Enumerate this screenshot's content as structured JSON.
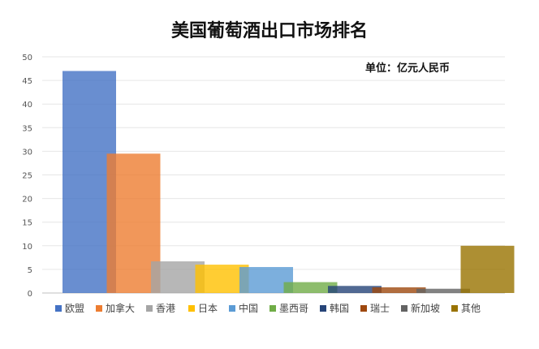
{
  "chart_data": {
    "type": "bar",
    "title": "美国葡萄酒出口市场排名",
    "unit_label": "单位：亿元人民币",
    "categories": [
      "欧盟",
      "加拿大",
      "香港",
      "日本",
      "中国",
      "墨西哥",
      "韩国",
      "瑞士",
      "新加坡",
      "其他"
    ],
    "values": [
      47,
      29.5,
      6.7,
      6,
      5.5,
      2.3,
      1.5,
      1.2,
      0.9,
      10
    ],
    "colors": [
      "#4472C4",
      "#ED7D31",
      "#A5A5A5",
      "#FFC000",
      "#5B9BD5",
      "#70AD47",
      "#264478",
      "#9E480E",
      "#636363",
      "#997300"
    ],
    "ylim": [
      0,
      50
    ],
    "yticks": [
      "0",
      "5",
      "10",
      "15",
      "20",
      "25",
      "30",
      "35",
      "40",
      "45",
      "50"
    ],
    "grid": true,
    "legend_position": "bottom"
  }
}
